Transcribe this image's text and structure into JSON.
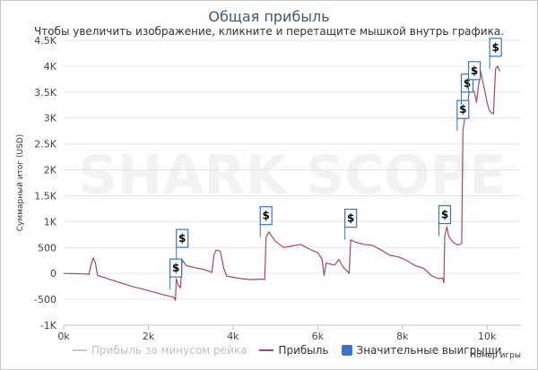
{
  "title": "Общая прибыль",
  "subtitle": "Чтобы увеличить изображение, кликните и перетащите мышкой внутрь графика.",
  "watermark": "SHARK SCOPE",
  "colors": {
    "profit": "#a84a52",
    "minus_rake": "#c8c8c8",
    "big_wins": "#3a74c6",
    "title": "#3b5a7c"
  },
  "chart_data": {
    "type": "line",
    "title": "Общая прибыль",
    "xlabel": "Номер игры",
    "ylabel": "Суммарный итог (USD)",
    "xlim": [
      0,
      10800
    ],
    "ylim": [
      -1000,
      4500
    ],
    "x_ticks": [
      0,
      2000,
      4000,
      6000,
      8000,
      10000
    ],
    "x_tick_labels": [
      "0k",
      "2k",
      "4k",
      "6k",
      "8k",
      "10k"
    ],
    "y_ticks": [
      -1000,
      -500,
      0,
      500,
      1000,
      1500,
      2000,
      2500,
      3000,
      3500,
      4000,
      4500
    ],
    "y_tick_labels": [
      "-1K",
      "-500",
      "0",
      "500",
      "1K",
      "1.5K",
      "2K",
      "2.5K",
      "3K",
      "3.5K",
      "4K",
      "4.5K"
    ],
    "grid": "horizontal",
    "legend": "bottom",
    "series": [
      {
        "name": "Прибыль за минусом рейка",
        "color": "#c8c8c8",
        "visible": false,
        "points": []
      },
      {
        "name": "Прибыль",
        "color": "#a84a52",
        "points": [
          [
            0,
            0
          ],
          [
            300,
            -5
          ],
          [
            500,
            -10
          ],
          [
            600,
            -20
          ],
          [
            650,
            180
          ],
          [
            700,
            300
          ],
          [
            750,
            200
          ],
          [
            800,
            -40
          ],
          [
            1000,
            -90
          ],
          [
            1300,
            -170
          ],
          [
            1600,
            -250
          ],
          [
            2000,
            -330
          ],
          [
            2300,
            -400
          ],
          [
            2600,
            -460
          ],
          [
            2640,
            -520
          ],
          [
            2660,
            -100
          ],
          [
            2700,
            -220
          ],
          [
            2760,
            -280
          ],
          [
            2800,
            260
          ],
          [
            2850,
            200
          ],
          [
            2900,
            150
          ],
          [
            3100,
            110
          ],
          [
            3300,
            80
          ],
          [
            3500,
            20
          ],
          [
            3550,
            350
          ],
          [
            3600,
            450
          ],
          [
            3700,
            430
          ],
          [
            3780,
            100
          ],
          [
            3850,
            -50
          ],
          [
            4100,
            -90
          ],
          [
            4400,
            -120
          ],
          [
            4700,
            -110
          ],
          [
            4750,
            -120
          ],
          [
            4780,
            700
          ],
          [
            4850,
            800
          ],
          [
            5000,
            620
          ],
          [
            5200,
            500
          ],
          [
            5400,
            530
          ],
          [
            5600,
            560
          ],
          [
            5800,
            470
          ],
          [
            6000,
            400
          ],
          [
            6100,
            280
          ],
          [
            6150,
            -40
          ],
          [
            6200,
            200
          ],
          [
            6400,
            160
          ],
          [
            6500,
            270
          ],
          [
            6600,
            120
          ],
          [
            6700,
            40
          ],
          [
            6740,
            0
          ],
          [
            6780,
            650
          ],
          [
            6900,
            600
          ],
          [
            7100,
            560
          ],
          [
            7300,
            540
          ],
          [
            7500,
            450
          ],
          [
            7700,
            350
          ],
          [
            7900,
            320
          ],
          [
            8100,
            250
          ],
          [
            8300,
            150
          ],
          [
            8500,
            100
          ],
          [
            8700,
            -50
          ],
          [
            8850,
            -100
          ],
          [
            8950,
            -90
          ],
          [
            8980,
            -180
          ],
          [
            9000,
            720
          ],
          [
            9050,
            900
          ],
          [
            9100,
            700
          ],
          [
            9200,
            600
          ],
          [
            9300,
            550
          ],
          [
            9350,
            560
          ],
          [
            9400,
            580
          ],
          [
            9430,
            2750
          ],
          [
            9480,
            3050
          ],
          [
            9540,
            3300
          ],
          [
            9600,
            3600
          ],
          [
            9650,
            3550
          ],
          [
            9700,
            3500
          ],
          [
            9750,
            3300
          ],
          [
            9800,
            3650
          ],
          [
            9850,
            3900
          ],
          [
            9900,
            3700
          ],
          [
            9950,
            3500
          ],
          [
            10000,
            3300
          ],
          [
            10050,
            3150
          ],
          [
            10100,
            3100
          ],
          [
            10150,
            3080
          ],
          [
            10200,
            3950
          ],
          [
            10250,
            4000
          ],
          [
            10300,
            3900
          ]
        ]
      }
    ],
    "big_wins": [
      {
        "label": "$",
        "x": 2650
      },
      {
        "label": "$",
        "x": 2800
      },
      {
        "label": "$",
        "x": 4780
      },
      {
        "label": "$",
        "x": 6780
      },
      {
        "label": "$",
        "x": 9000
      },
      {
        "label": "$",
        "x": 9430
      },
      {
        "label": "$",
        "x": 9530
      },
      {
        "label": "$",
        "x": 9700
      },
      {
        "label": "$",
        "x": 10200
      }
    ]
  },
  "legend_items": {
    "minus_rake": "Прибыль за минусом рейка",
    "profit": "Прибыль",
    "big_wins": "Значительные выигрыши"
  }
}
